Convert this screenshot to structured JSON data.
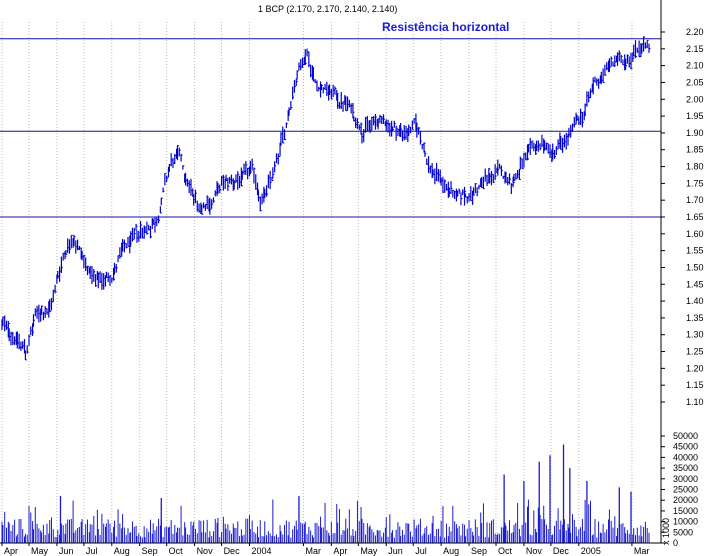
{
  "chart_data": {
    "type": "bar",
    "title": "1 BCP (2.170, 2.170, 2.140, 2.140)",
    "annotation": "Resistência horizontal",
    "colors": {
      "price": "#0000cc",
      "volume": "#1a1ad0",
      "lines": "#1010a8",
      "grid": "#b9b9b9",
      "axis": "#000000"
    },
    "price_axis": {
      "ticks": [
        "2.20",
        "2.15",
        "2.10",
        "2.05",
        "2.00",
        "1.95",
        "1.90",
        "1.85",
        "1.80",
        "1.75",
        "1.70",
        "1.65",
        "1.60",
        "1.55",
        "1.50",
        "1.45",
        "1.40",
        "1.35",
        "1.30",
        "1.25",
        "1.20",
        "1.15",
        "1.10"
      ],
      "ylim": [
        1.1,
        2.2
      ]
    },
    "volume_axis": {
      "ticks": [
        "50000",
        "45000",
        "40000",
        "35000",
        "30000",
        "25000",
        "20000",
        "15000",
        "10000",
        "5000",
        "0"
      ],
      "unit_label": "x 1000",
      "ylim": [
        0,
        50000
      ]
    },
    "x_axis": {
      "labels": [
        "Apr",
        "May",
        "Jun",
        "Jul",
        "Aug",
        "Sep",
        "Oct",
        "Nov",
        "Dec",
        "2004",
        "Mar",
        "Apr",
        "May",
        "Jun",
        "Jul",
        "Aug",
        "Sep",
        "Oct",
        "Nov",
        "Dec",
        "2005",
        "Mar"
      ],
      "span": [
        "2003-04-01",
        "2005-03-20"
      ]
    },
    "horizontal_lines": [
      2.18,
      1.905,
      1.65
    ],
    "price_path": [
      [
        "2003-04-01",
        1.33
      ],
      [
        "2003-04-15",
        1.3
      ],
      [
        "2003-04-28",
        1.25
      ],
      [
        "2003-05-10",
        1.36
      ],
      [
        "2003-05-25",
        1.38
      ],
      [
        "2003-06-10",
        1.55
      ],
      [
        "2003-06-20",
        1.6
      ],
      [
        "2003-07-05",
        1.5
      ],
      [
        "2003-07-15",
        1.45
      ],
      [
        "2003-08-01",
        1.48
      ],
      [
        "2003-08-15",
        1.55
      ],
      [
        "2003-09-01",
        1.6
      ],
      [
        "2003-09-20",
        1.64
      ],
      [
        "2003-10-05",
        1.8
      ],
      [
        "2003-10-15",
        1.83
      ],
      [
        "2003-10-25",
        1.75
      ],
      [
        "2003-11-05",
        1.68
      ],
      [
        "2003-11-20",
        1.7
      ],
      [
        "2003-12-05",
        1.75
      ],
      [
        "2003-12-20",
        1.76
      ],
      [
        "2004-01-05",
        1.78
      ],
      [
        "2004-01-15",
        1.7
      ],
      [
        "2004-01-25",
        1.75
      ],
      [
        "2004-02-10",
        1.9
      ],
      [
        "2004-02-20",
        2.05
      ],
      [
        "2004-03-05",
        2.15
      ],
      [
        "2004-03-15",
        2.05
      ],
      [
        "2004-04-01",
        2.02
      ],
      [
        "2004-04-20",
        1.98
      ],
      [
        "2004-05-05",
        1.92
      ],
      [
        "2004-06-01",
        1.93
      ],
      [
        "2004-06-20",
        1.9
      ],
      [
        "2004-07-05",
        1.92
      ],
      [
        "2004-07-20",
        1.8
      ],
      [
        "2004-08-05",
        1.75
      ],
      [
        "2004-08-20",
        1.7
      ],
      [
        "2004-09-05",
        1.72
      ],
      [
        "2004-09-20",
        1.76
      ],
      [
        "2004-10-05",
        1.78
      ],
      [
        "2004-10-20",
        1.76
      ],
      [
        "2004-11-05",
        1.82
      ],
      [
        "2004-11-20",
        1.87
      ],
      [
        "2004-12-05",
        1.84
      ],
      [
        "2004-12-20",
        1.88
      ],
      [
        "2005-01-05",
        1.95
      ],
      [
        "2005-01-20",
        2.05
      ],
      [
        "2005-02-05",
        2.1
      ],
      [
        "2005-02-20",
        2.12
      ],
      [
        "2005-03-05",
        2.15
      ],
      [
        "2005-03-15",
        2.17
      ],
      [
        "2005-03-20",
        2.14
      ]
    ],
    "volume_spikes": [
      [
        "2004-10-10",
        32000
      ],
      [
        "2004-11-01",
        29000
      ],
      [
        "2004-11-18",
        38000
      ],
      [
        "2004-11-30",
        41000
      ],
      [
        "2004-12-15",
        46000
      ],
      [
        "2004-12-22",
        35000
      ],
      [
        "2005-01-10",
        29000
      ],
      [
        "2005-02-15",
        26000
      ],
      [
        "2004-02-25",
        22000
      ],
      [
        "2003-09-25",
        21000
      ],
      [
        "2003-06-05",
        22000
      ],
      [
        "2005-02-28",
        24000
      ]
    ]
  }
}
